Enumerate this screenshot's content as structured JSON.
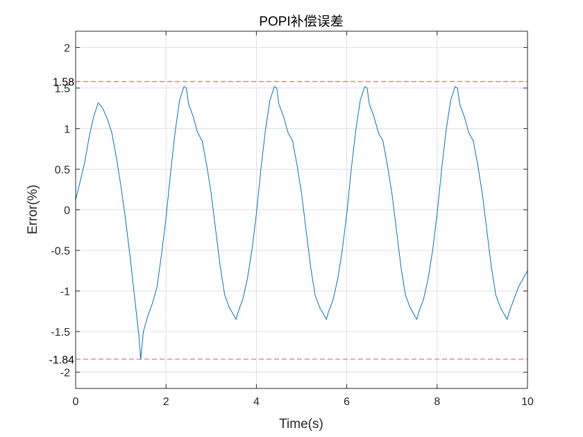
{
  "chart_data": {
    "type": "line",
    "title": "POPI补偿误差",
    "xlabel": "Time(s)",
    "ylabel": "Error(%)",
    "xlim": [
      0,
      10
    ],
    "ylim": [
      -2.2,
      2.2
    ],
    "xticks": [
      0,
      2,
      4,
      6,
      8,
      10
    ],
    "xtick_labels": [
      "0",
      "2",
      "4",
      "6",
      "8",
      "10"
    ],
    "yticks": [
      2,
      1.5,
      1,
      0.5,
      0,
      -0.5,
      -1,
      -1.5,
      -2
    ],
    "ytick_labels": [
      "2",
      "1.5",
      "1",
      "0.5",
      "0",
      "-0.5",
      "-1",
      "-1.5",
      "-2"
    ],
    "grid": true,
    "series": [
      {
        "color": "#0072BD",
        "x": [
          0,
          0.1,
          0.2,
          0.3,
          0.4,
          0.5,
          0.6,
          0.7,
          0.8,
          0.9,
          1.0,
          1.1,
          1.2,
          1.3,
          1.4,
          1.44,
          1.5,
          1.6,
          1.7,
          1.8,
          1.9,
          2.0,
          2.1,
          2.2,
          2.3,
          2.4,
          2.45,
          2.5,
          2.6,
          2.7,
          2.8,
          2.9,
          3.0,
          3.1,
          3.2,
          3.3,
          3.4,
          3.5,
          3.55,
          3.6,
          3.7,
          3.8,
          3.9,
          4.0,
          4.1,
          4.2,
          4.3,
          4.4,
          4.45,
          4.5,
          4.6,
          4.7,
          4.8,
          4.9,
          5.0,
          5.1,
          5.2,
          5.3,
          5.4,
          5.5,
          5.55,
          5.6,
          5.7,
          5.8,
          5.9,
          6.0,
          6.1,
          6.2,
          6.3,
          6.4,
          6.45,
          6.5,
          6.6,
          6.7,
          6.8,
          6.9,
          7.0,
          7.1,
          7.2,
          7.3,
          7.4,
          7.5,
          7.55,
          7.6,
          7.7,
          7.8,
          7.9,
          8.0,
          8.1,
          8.2,
          8.3,
          8.4,
          8.45,
          8.5,
          8.6,
          8.7,
          8.8,
          8.9,
          9.0,
          9.1,
          9.2,
          9.3,
          9.4,
          9.5,
          9.55,
          9.6,
          9.7,
          9.8,
          9.9,
          10.0
        ],
        "y": [
          0.12,
          0.35,
          0.58,
          0.9,
          1.15,
          1.32,
          1.25,
          1.12,
          0.95,
          0.65,
          0.3,
          -0.1,
          -0.55,
          -1.05,
          -1.55,
          -1.84,
          -1.5,
          -1.3,
          -1.15,
          -0.95,
          -0.55,
          -0.1,
          0.45,
          0.95,
          1.35,
          1.52,
          1.5,
          1.3,
          1.15,
          0.95,
          0.85,
          0.55,
          0.2,
          -0.25,
          -0.7,
          -1.05,
          -1.2,
          -1.3,
          -1.35,
          -1.25,
          -1.1,
          -0.85,
          -0.5,
          -0.05,
          0.5,
          0.98,
          1.35,
          1.52,
          1.5,
          1.3,
          1.15,
          0.95,
          0.85,
          0.55,
          0.2,
          -0.25,
          -0.7,
          -1.05,
          -1.2,
          -1.3,
          -1.35,
          -1.25,
          -1.1,
          -0.85,
          -0.5,
          -0.05,
          0.5,
          0.98,
          1.35,
          1.52,
          1.5,
          1.3,
          1.15,
          0.95,
          0.85,
          0.55,
          0.2,
          -0.25,
          -0.7,
          -1.05,
          -1.2,
          -1.3,
          -1.35,
          -1.25,
          -1.1,
          -0.85,
          -0.5,
          -0.05,
          0.5,
          0.98,
          1.35,
          1.52,
          1.5,
          1.3,
          1.15,
          0.95,
          0.85,
          0.55,
          0.2,
          -0.25,
          -0.7,
          -1.05,
          -1.2,
          -1.3,
          -1.35,
          -1.25,
          -1.1,
          -0.95,
          -0.85,
          -0.75
        ]
      }
    ],
    "reference_lines": [
      {
        "y": 1.58,
        "label": "1.58",
        "color": "#FF6B6B",
        "style": "dashed"
      },
      {
        "y": -1.84,
        "label": "-1.84",
        "color": "#FF6B6B",
        "style": "dashed"
      }
    ]
  }
}
